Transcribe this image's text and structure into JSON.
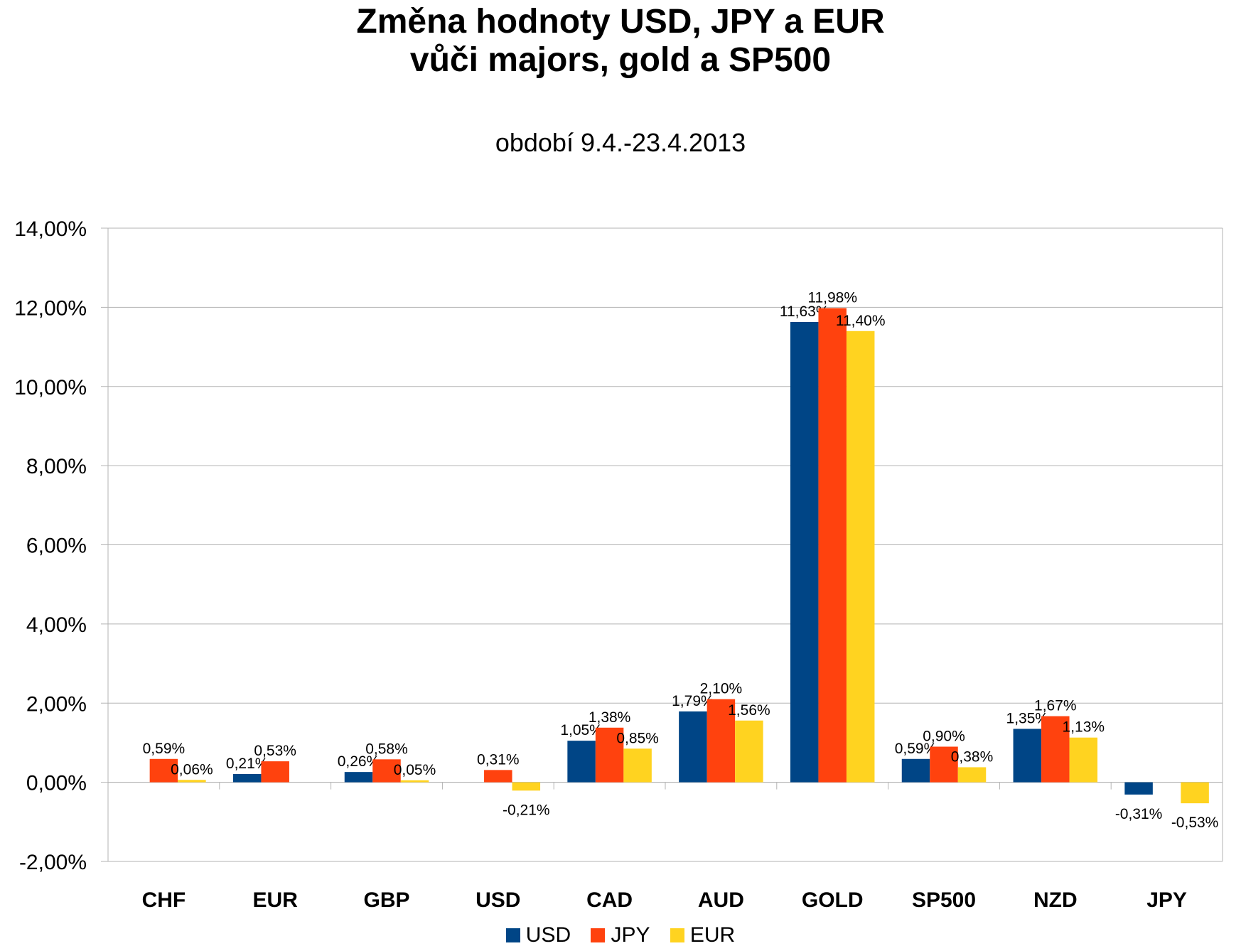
{
  "title_line1": "Změna hodnoty USD, JPY a EUR",
  "title_line2": "vůči majors, gold a SP500",
  "subtitle": "období 9.4.-23.4.2013",
  "colors": {
    "USD": "#004586",
    "JPY": "#ff420e",
    "EUR": "#ffd320",
    "grid": "#b3b3b3",
    "axis": "#b3b3b3"
  },
  "chart_data": {
    "type": "bar",
    "title": "Změna hodnoty USD, JPY a EUR vůči majors, gold a SP500",
    "subtitle": "období 9.4.-23.4.2013",
    "categories": [
      "CHF",
      "EUR",
      "GBP",
      "USD",
      "CAD",
      "AUD",
      "GOLD",
      "SP500",
      "NZD",
      "JPY"
    ],
    "series": [
      {
        "name": "USD",
        "values": [
          null,
          0.21,
          0.26,
          null,
          1.05,
          1.79,
          11.63,
          0.59,
          1.35,
          -0.31
        ],
        "labels": [
          "",
          "0,21%",
          "0,26%",
          "",
          "1,05%",
          "1,79%",
          "11,63%",
          "0,59%",
          "1,35%",
          "-0,31%"
        ]
      },
      {
        "name": "JPY",
        "values": [
          0.59,
          0.53,
          0.58,
          0.31,
          1.38,
          2.1,
          11.98,
          0.9,
          1.67,
          null
        ],
        "labels": [
          "0,59%",
          "0,53%",
          "0,58%",
          "0,31%",
          "1,38%",
          "2,10%",
          "11,98%",
          "0,90%",
          "1,67%",
          ""
        ]
      },
      {
        "name": "EUR",
        "values": [
          0.06,
          null,
          0.05,
          -0.21,
          0.85,
          1.56,
          11.4,
          0.38,
          1.13,
          -0.53
        ],
        "labels": [
          "0,06%",
          "",
          "0,05%",
          "-0,21%",
          "0,85%",
          "1,56%",
          "11,40%",
          "0,38%",
          "1,13%",
          "-0,53%"
        ]
      }
    ],
    "ylim": [
      -2,
      14
    ],
    "yticks": [
      -2,
      0,
      2,
      4,
      6,
      8,
      10,
      12,
      14
    ],
    "ytick_labels": [
      "-2,00%",
      "0,00%",
      "2,00%",
      "4,00%",
      "6,00%",
      "8,00%",
      "10,00%",
      "12,00%",
      "14,00%"
    ],
    "grid": true,
    "legend_position": "bottom"
  },
  "legend": [
    {
      "name": "USD",
      "color": "#004586"
    },
    {
      "name": "JPY",
      "color": "#ff420e"
    },
    {
      "name": "EUR",
      "color": "#ffd320"
    }
  ]
}
